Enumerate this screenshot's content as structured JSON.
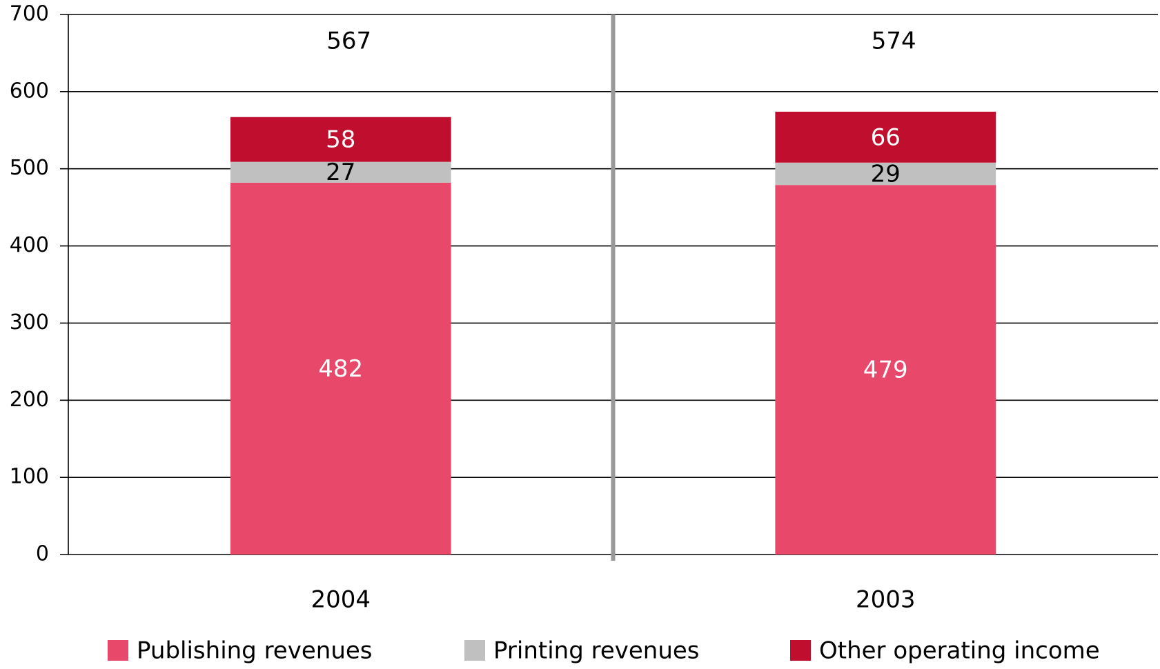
{
  "chart_data": {
    "type": "stacked_bar",
    "categories": [
      "2004",
      "2003"
    ],
    "series": [
      {
        "name": "Publishing revenues",
        "color": "#e8496a",
        "values": [
          482,
          479
        ]
      },
      {
        "name": "Printing revenues",
        "color": "#c0c0c0",
        "values": [
          27,
          29
        ]
      },
      {
        "name": "Other operating income",
        "color": "#c00e2e",
        "values": [
          58,
          66
        ]
      }
    ],
    "totals": [
      567,
      574
    ],
    "ylim": [
      0,
      700
    ],
    "yticks": [
      0,
      100,
      200,
      300,
      400,
      500,
      600,
      700
    ],
    "grid": true,
    "legend": "bottom"
  }
}
